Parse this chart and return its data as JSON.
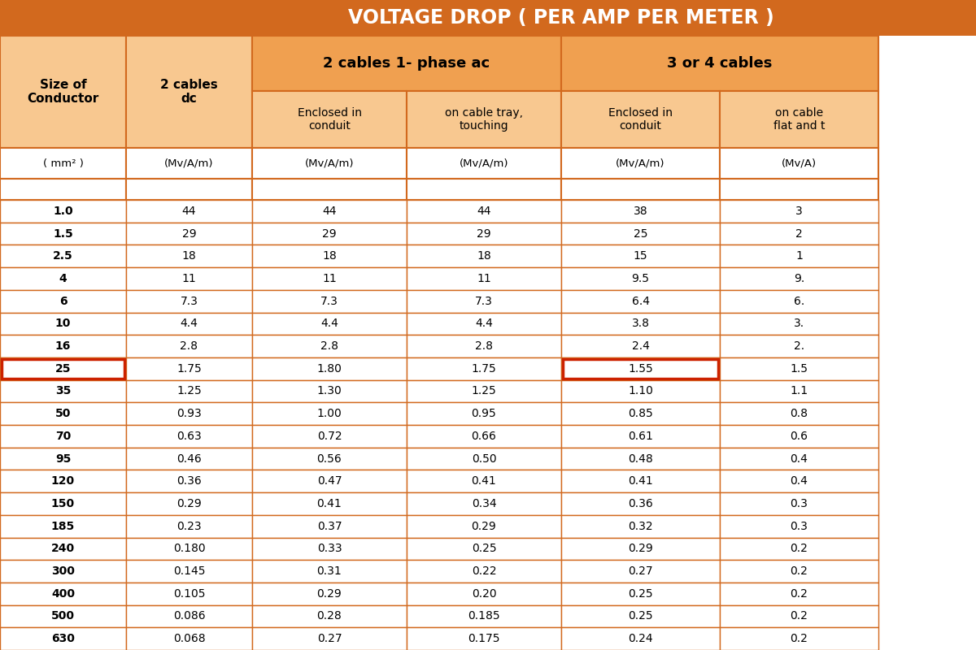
{
  "title": "VOLTAGE DROP ( PER AMP PER METER )",
  "title_bg": "#D2691E",
  "title_color": "#FFFFFF",
  "header_bg_orange": "#F0A050",
  "header_bg_light": "#F8C890",
  "row_bg_white": "#FFFFFF",
  "border_color": "#D2691E",
  "highlight_color": "#CC2200",
  "col_headers_group": [
    "Size of\nConductor",
    "2 cables\ndc",
    "2 cables 1- phase ac",
    "3 or 4 cables"
  ],
  "sub_headers": [
    "Enclosed in\nconduit",
    "on cable tray,\ntouching",
    "Enclosed in\nconduit",
    "on cable\nflat and t"
  ],
  "unit_labels": [
    "( mm² )",
    "(Mv/A/m)",
    "(Mv/A/m)",
    "(Mv/A/m)",
    "(Mv/A/m)",
    "(Mv/A)"
  ],
  "sizes": [
    "1.0",
    "1.5",
    "2.5",
    "4",
    "6",
    "10",
    "16",
    "25",
    "35",
    "50",
    "70",
    "95",
    "120",
    "150",
    "185",
    "240",
    "300",
    "400",
    "500",
    "630"
  ],
  "col1_dc": [
    "44",
    "29",
    "18",
    "11",
    "7.3",
    "4.4",
    "2.8",
    "1.75",
    "1.25",
    "0.93",
    "0.63",
    "0.46",
    "0.36",
    "0.29",
    "0.23",
    "0.180",
    "0.145",
    "0.105",
    "0.086",
    "0.068"
  ],
  "col2_enc": [
    "44",
    "29",
    "18",
    "11",
    "7.3",
    "4.4",
    "2.8",
    "1.80",
    "1.30",
    "1.00",
    "0.72",
    "0.56",
    "0.47",
    "0.41",
    "0.37",
    "0.33",
    "0.31",
    "0.29",
    "0.28",
    "0.27"
  ],
  "col3_tray": [
    "44",
    "29",
    "18",
    "11",
    "7.3",
    "4.4",
    "2.8",
    "1.75",
    "1.25",
    "0.95",
    "0.66",
    "0.50",
    "0.41",
    "0.34",
    "0.29",
    "0.25",
    "0.22",
    "0.20",
    "0.185",
    "0.175"
  ],
  "col4_enc3": [
    "38",
    "25",
    "15",
    "9.5",
    "6.4",
    "3.8",
    "2.4",
    "1.55",
    "1.10",
    "0.85",
    "0.61",
    "0.48",
    "0.41",
    "0.36",
    "0.32",
    "0.29",
    "0.27",
    "0.25",
    "0.25",
    "0.24"
  ],
  "col5_tray3": [
    "3",
    "2",
    "1",
    "9.",
    "6.",
    "3.",
    "2.",
    "1.5",
    "1.1",
    "0.8",
    "0.6",
    "0.4",
    "0.4",
    "0.3",
    "0.3",
    "0.2",
    "0.2",
    "0.2",
    "0.2",
    "0.2"
  ],
  "highlight_row": 7,
  "highlight_cols": [
    0,
    4
  ]
}
